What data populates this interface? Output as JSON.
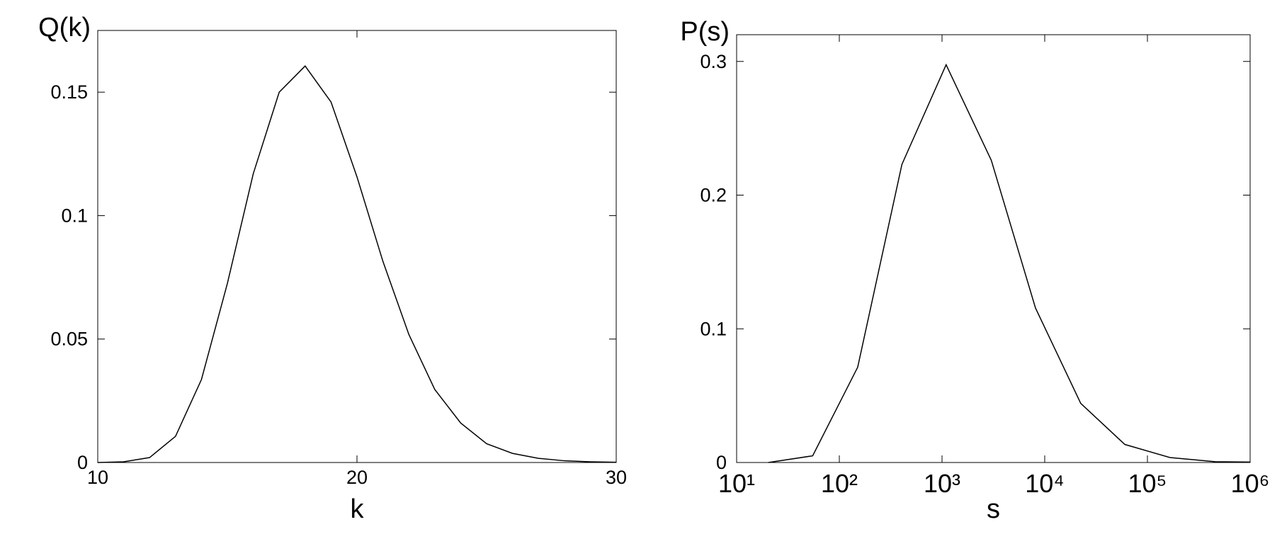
{
  "chart_data": [
    {
      "type": "line",
      "y_label": "Q(k)",
      "x_label": "k",
      "color": "#000000",
      "x": [
        10,
        11,
        12,
        13,
        14,
        15,
        16,
        17,
        18,
        19,
        20,
        21,
        22,
        23,
        24,
        25,
        26,
        27,
        28,
        29,
        30
      ],
      "values": [
        0,
        0.0003,
        0.002,
        0.0106,
        0.0336,
        0.0725,
        0.117,
        0.15,
        0.1606,
        0.146,
        0.1157,
        0.0815,
        0.0519,
        0.0296,
        0.016,
        0.0076,
        0.0037,
        0.0017,
        0.0007,
        0.0003,
        0.0001
      ],
      "xlim": [
        10,
        30
      ],
      "ylim": [
        0,
        0.175
      ],
      "xticks": [
        10,
        20,
        30
      ],
      "yticks": [
        0,
        0.05,
        0.1,
        0.15
      ],
      "xscale": "linear"
    },
    {
      "type": "line",
      "y_label": "P(s)",
      "x_label": "s",
      "color": "#000000",
      "x": [
        20.4,
        55,
        151,
        407,
        1096,
        3020,
        8128,
        22387,
        60256,
        166000,
        457000,
        1000000
      ],
      "values": [
        0,
        0.005,
        0.0713,
        0.223,
        0.2975,
        0.226,
        0.1156,
        0.0443,
        0.0135,
        0.0037,
        0.0006,
        0.0003
      ],
      "xlim": [
        10,
        1000000
      ],
      "ylim": [
        0,
        0.32
      ],
      "xticks": [
        {
          "value": 10,
          "label": "10¹"
        },
        {
          "value": 100,
          "label": "10²"
        },
        {
          "value": 1000,
          "label": "10³"
        },
        {
          "value": 10000,
          "label": "10⁴"
        },
        {
          "value": 100000,
          "label": "10⁵"
        },
        {
          "value": 1000000,
          "label": "10⁶"
        }
      ],
      "yticks": [
        0,
        0.1,
        0.2,
        0.3
      ],
      "xscale": "log"
    }
  ]
}
